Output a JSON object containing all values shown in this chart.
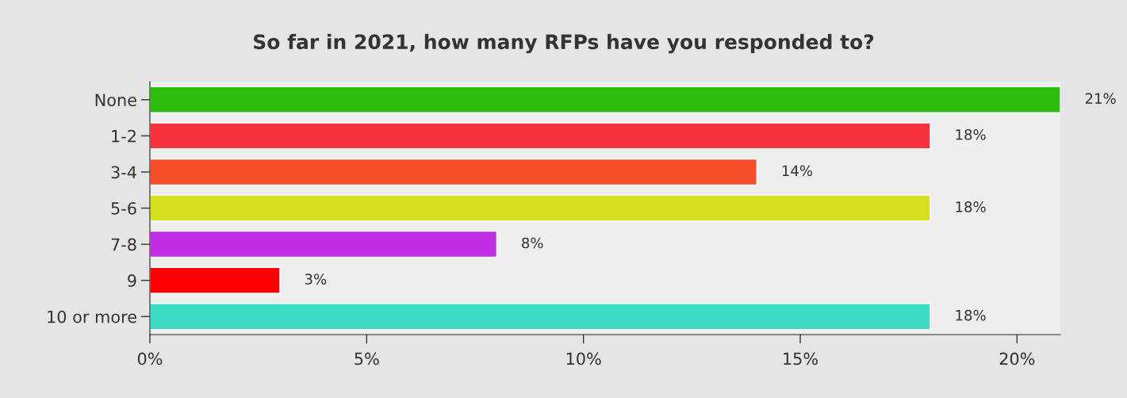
{
  "chart_data": {
    "type": "bar",
    "orientation": "horizontal",
    "title": "So far in 2021, how many RFPs have you responded to?",
    "categories": [
      "None",
      "1-2",
      "3-4",
      "5-6",
      "7-8",
      "9",
      "10 or more"
    ],
    "values": [
      21,
      18,
      14,
      18,
      8,
      3,
      18
    ],
    "colors": [
      "#2dbd0e",
      "#f7323f",
      "#f74f2c",
      "#d6e021",
      "#c12de0",
      "#fe0000",
      "#3cdcc4"
    ],
    "value_labels": [
      "21%",
      "18%",
      "14%",
      "18%",
      "8%",
      "3%",
      "18%"
    ],
    "xlim": [
      0,
      21
    ],
    "xticks": [
      {
        "value": 0,
        "label": "0%"
      },
      {
        "value": 5,
        "label": "5%"
      },
      {
        "value": 10,
        "label": "10%"
      },
      {
        "value": 15,
        "label": "15%"
      },
      {
        "value": 20,
        "label": "20%"
      }
    ],
    "grid": false,
    "legend": false
  }
}
